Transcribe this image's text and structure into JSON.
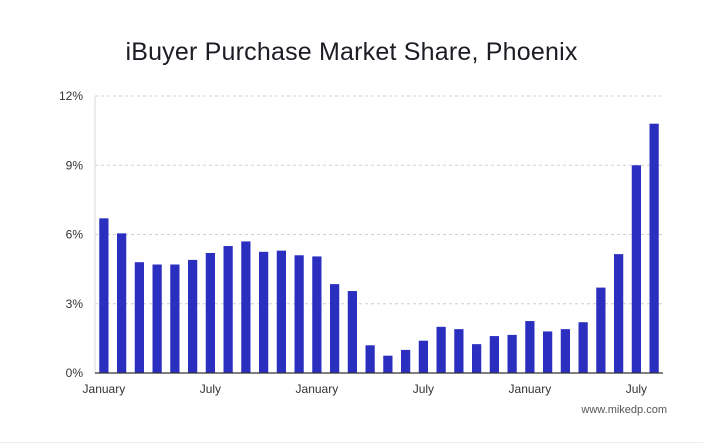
{
  "chart_data": {
    "type": "bar",
    "title": "iBuyer Purchase Market Share, Phoenix",
    "xlabel": "",
    "ylabel": "",
    "ylim": [
      0,
      12
    ],
    "y_ticks": [
      0,
      3,
      6,
      9,
      12
    ],
    "y_tick_labels": [
      "0%",
      "3%",
      "6%",
      "9%",
      "12%"
    ],
    "grid": true,
    "bar_color": "#2a2fbf",
    "values": [
      6.7,
      6.05,
      4.8,
      4.7,
      4.7,
      4.9,
      5.2,
      5.5,
      5.7,
      5.25,
      5.3,
      5.1,
      5.05,
      3.85,
      3.55,
      1.2,
      0.75,
      1.0,
      1.4,
      2.0,
      1.9,
      1.25,
      1.6,
      1.65,
      2.25,
      1.8,
      1.9,
      2.2,
      3.7,
      5.15,
      9.0,
      10.8
    ],
    "x_tick_labels": [
      {
        "index": 0,
        "label": "January"
      },
      {
        "index": 6,
        "label": "July"
      },
      {
        "index": 12,
        "label": "January"
      },
      {
        "index": 18,
        "label": "July"
      },
      {
        "index": 24,
        "label": "January"
      },
      {
        "index": 30,
        "label": "July"
      }
    ]
  },
  "credit": "www.mikedp.com"
}
